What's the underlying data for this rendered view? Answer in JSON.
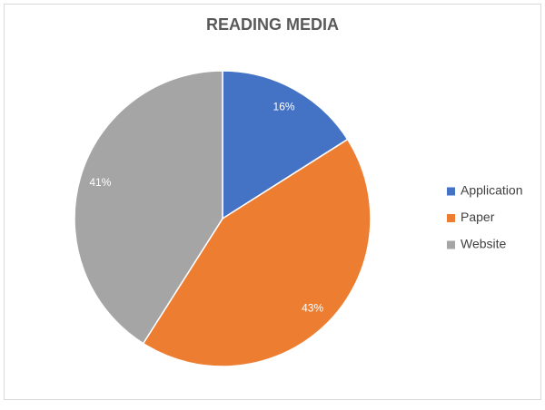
{
  "chart_data": {
    "type": "pie",
    "title": "READING MEDIA",
    "categories": [
      "Application",
      "Paper",
      "Website"
    ],
    "values": [
      16,
      43,
      41
    ],
    "value_labels": [
      "16%",
      "43%",
      "41%"
    ],
    "colors": [
      "#4472c4",
      "#ed7d31",
      "#a5a5a5"
    ],
    "legend": "right"
  }
}
